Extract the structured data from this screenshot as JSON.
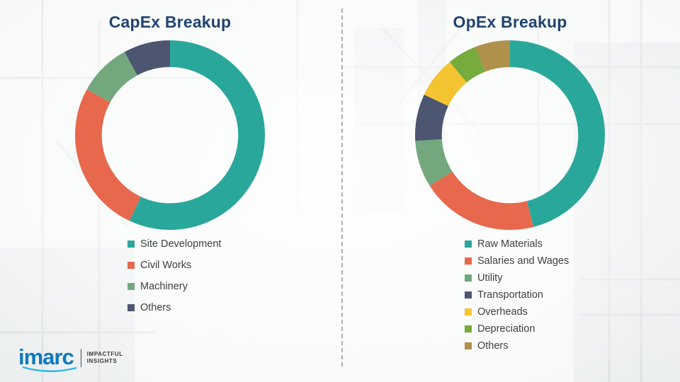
{
  "chart_data": [
    {
      "type": "pie",
      "subtype": "donut",
      "title": "CapEx Breakup",
      "labels": [
        "Site Development",
        "Civil Works",
        "Machinery",
        "Others"
      ],
      "values": [
        57,
        26,
        9,
        8
      ],
      "colors": [
        "#2AA79B",
        "#E7684C",
        "#73A87E",
        "#4D5671"
      ],
      "legend_position": "bottom-left",
      "start_angle": "top",
      "direction": "clockwise"
    },
    {
      "type": "pie",
      "subtype": "donut",
      "title": "OpEx Breakup",
      "labels": [
        "Raw Materials",
        "Salaries and Wages",
        "Utility",
        "Transportation",
        "Overheads",
        "Depreciation",
        "Others"
      ],
      "values": [
        46,
        20,
        8,
        8,
        7,
        5,
        6
      ],
      "colors": [
        "#2AA79B",
        "#E7684C",
        "#73A87E",
        "#4D5671",
        "#F4C430",
        "#76AB3E",
        "#B0914B"
      ],
      "legend_position": "bottom-left",
      "start_angle": "top",
      "direction": "clockwise"
    }
  ],
  "logo": {
    "name": "imarc",
    "tagline_line1": "IMPACTFUL",
    "tagline_line2": "INSIGHTS"
  },
  "colors": {
    "title": "#21436F",
    "legend_text": "#3F3F3F",
    "logo_blue": "#1079BE",
    "logo_swoosh": "#2BB4E8"
  }
}
